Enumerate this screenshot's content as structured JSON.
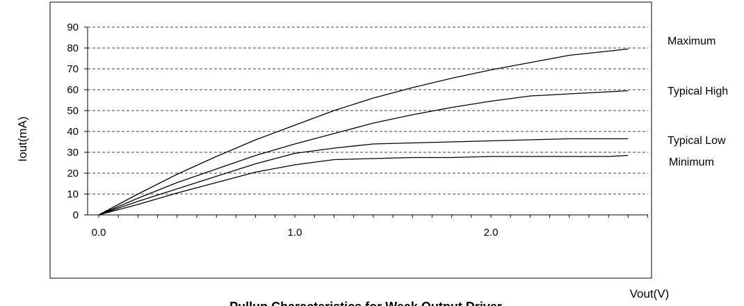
{
  "chart_data": {
    "type": "line",
    "title": "Pullup Characteristics for Weak Output Driver",
    "xlabel": "Vout(V)",
    "ylabel": "Iout(mA)",
    "xlim": [
      0,
      2.8
    ],
    "ylim": [
      0,
      90
    ],
    "x_ticks": [
      0,
      1,
      2
    ],
    "x_tick_labels": [
      "0.0",
      "1.0",
      "2.0"
    ],
    "y_ticks": [
      0,
      10,
      20,
      30,
      40,
      50,
      60,
      70,
      80,
      90
    ],
    "y_tick_labels": [
      "0",
      "10",
      "20",
      "30",
      "40",
      "50",
      "60",
      "70",
      "80",
      "90"
    ],
    "grid": "horizontal dashed",
    "legend": "right",
    "x": [
      0,
      0.2,
      0.4,
      0.6,
      0.8,
      1.0,
      1.2,
      1.4,
      1.6,
      1.8,
      2.0,
      2.2,
      2.4,
      2.6,
      2.7
    ],
    "series": [
      {
        "name": "Maximum",
        "values": [
          0,
          10,
          19.5,
          28,
          36,
          43,
          50,
          56,
          61,
          65.5,
          69.5,
          73,
          76.5,
          78.5,
          79.5
        ]
      },
      {
        "name": "Typical High",
        "values": [
          0,
          8,
          15.5,
          22,
          28.5,
          34,
          39,
          44,
          48,
          51.5,
          54.5,
          57,
          58,
          59,
          59.5
        ]
      },
      {
        "name": "Typical Low",
        "values": [
          0,
          6.5,
          12.5,
          18.5,
          24.5,
          29.5,
          32,
          34,
          34.5,
          35,
          35.5,
          36,
          36.5,
          36.5,
          36.5
        ]
      },
      {
        "name": "Minimum",
        "values": [
          0,
          5,
          10.5,
          15.5,
          20.5,
          24,
          26.5,
          27,
          27.5,
          27.5,
          28,
          28,
          28,
          28,
          28.5
        ]
      }
    ]
  }
}
